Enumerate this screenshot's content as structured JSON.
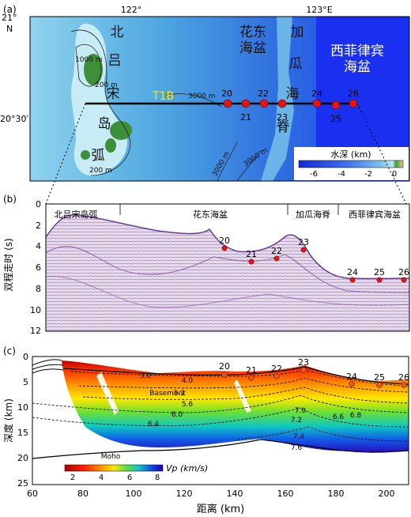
{
  "panel_a": {
    "label": "(a)",
    "lon_ticks": [
      "122°",
      "123°E"
    ],
    "lat_ticks": [
      "21°",
      "N",
      "20°30′"
    ],
    "place_labels": {
      "luzon_arc": [
        "北",
        "吕",
        "宋",
        "岛",
        "弧"
      ],
      "huadong_basin": [
        "花东",
        "海盆"
      ],
      "gagua_ridge": [
        "加",
        "瓜",
        "海",
        "脊"
      ],
      "west_philippine_basin": [
        "西菲律宾",
        "海盆"
      ]
    },
    "contours": [
      "1000 m",
      "200 m",
      "3000 m",
      "3000 m",
      "3000 m",
      "200 m",
      "3000 m"
    ],
    "line_name": "T1B",
    "stations_top": [
      "20",
      "22",
      "24",
      "26"
    ],
    "stations_bottom": [
      "21",
      "23",
      "25"
    ],
    "colorbar": {
      "title": "水深 (km)",
      "ticks": [
        "-6",
        "-4",
        "-2",
        "0"
      ]
    },
    "colors": {
      "deep": "#1c3cf0",
      "mid": "#4aa0e6",
      "shallow": "#a8e0f2",
      "land": "#3f8f3a",
      "station": "#e01515"
    }
  },
  "panel_b": {
    "label": "(b)",
    "ylabel": "双程走时 (s)",
    "yticks": [
      "0",
      "2",
      "4",
      "6",
      "8",
      "10",
      "12"
    ],
    "segments": [
      "北吕宋岛弧",
      "花东海盆",
      "加瓜海脊",
      "西菲律宾海盆"
    ],
    "stations": [
      "20",
      "21",
      "22",
      "23",
      "24",
      "25",
      "26"
    ],
    "colors": {
      "seismic": "#8b5aa8"
    }
  },
  "panel_c": {
    "label": "(c)",
    "ylabel": "深度 (km)",
    "xlabel": "距离 (km)",
    "yticks": [
      "0",
      "5",
      "10",
      "15",
      "20",
      "25"
    ],
    "xticks": [
      "60",
      "80",
      "100",
      "120",
      "140",
      "160",
      "180",
      "200"
    ],
    "stations": [
      "20",
      "21",
      "22",
      "23",
      "24",
      "25",
      "26"
    ],
    "velocity_labels": [
      "3.0",
      "4.0",
      "5.2",
      "5.6",
      "6.0",
      "6.4",
      "7.0",
      "7.2",
      "6.6",
      "6.8",
      "7.4",
      "7.6"
    ],
    "basement_label": "Basement",
    "moho_label": "Moho",
    "colorbar": {
      "title": "Vp (km/s)",
      "ticks": [
        "2",
        "4",
        "6",
        "8"
      ]
    }
  }
}
